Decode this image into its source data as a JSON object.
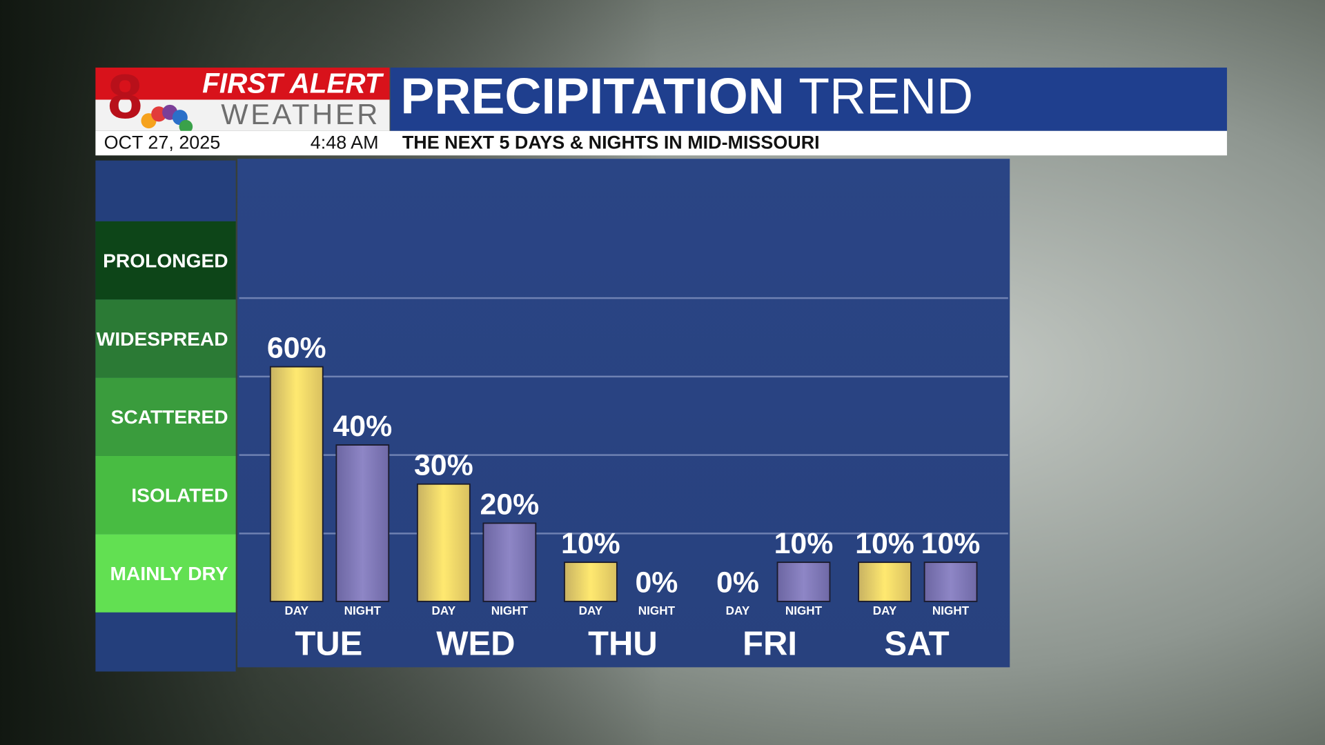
{
  "header": {
    "logo_number": "8",
    "brand_top": "FIRST ALERT",
    "brand_bottom": "WEATHER",
    "date": "OCT 27, 2025",
    "time": "4:48 AM"
  },
  "chart_data": {
    "type": "bar",
    "title": "PRECIPITATION",
    "title_suffix": "TREND",
    "subtitle": "THE NEXT 5 DAYS & NIGHTS IN MID-MISSOURI",
    "categories": [
      "TUE",
      "WED",
      "THU",
      "FRI",
      "SAT"
    ],
    "series": [
      {
        "name": "DAY",
        "color": "#f5dd6a",
        "values": [
          60,
          30,
          10,
          0,
          10
        ],
        "value_labels": [
          "60%",
          "30%",
          "10%",
          "0%",
          "10%"
        ]
      },
      {
        "name": "NIGHT",
        "color": "#8279b8",
        "values": [
          40,
          20,
          0,
          10,
          10
        ],
        "value_labels": [
          "40%",
          "20%",
          "0%",
          "10%",
          "10%"
        ]
      }
    ],
    "ylim": [
      0,
      100
    ],
    "bands": [
      "PROLONGED",
      "WIDESPREAD",
      "SCATTERED",
      "ISOLATED",
      "MAINLY DRY"
    ],
    "band_colors": [
      "#0d4518",
      "#2b7a35",
      "#3a9c3d",
      "#48bc42",
      "#62e052"
    ]
  }
}
